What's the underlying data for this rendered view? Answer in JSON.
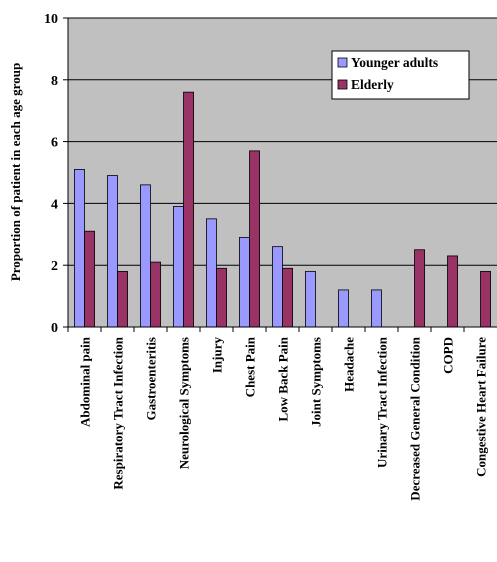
{
  "chart_data": {
    "type": "bar",
    "title": "",
    "xlabel": "",
    "ylabel": "Proportion of patient in each age group",
    "ylim": [
      0,
      10
    ],
    "yticks": [
      0,
      2,
      4,
      6,
      8,
      10
    ],
    "grid": true,
    "legend_position": "top-right",
    "plot_background": "#c0c0c0",
    "categories": [
      "Abdominal pain",
      "Respiratory Tract Infection",
      "Gastroenteritis",
      "Neurological Symptoms",
      "Injury",
      "Chest Pain",
      "Low Back Pain",
      "Joint Symptoms",
      "Headache",
      "Urinary Tract Infection",
      "Decreased General Condition",
      "COPD",
      "Congestive Heart Failure"
    ],
    "series": [
      {
        "name": "Younger adults",
        "color": "#9999ff",
        "values": [
          5.1,
          4.9,
          4.6,
          3.9,
          3.5,
          2.9,
          2.6,
          1.8,
          1.2,
          1.2,
          0,
          0,
          0
        ]
      },
      {
        "name": "Elderly",
        "color": "#993366",
        "values": [
          3.1,
          1.8,
          2.1,
          7.6,
          1.9,
          5.7,
          1.9,
          0,
          0,
          0,
          2.5,
          2.3,
          1.8
        ]
      }
    ]
  }
}
